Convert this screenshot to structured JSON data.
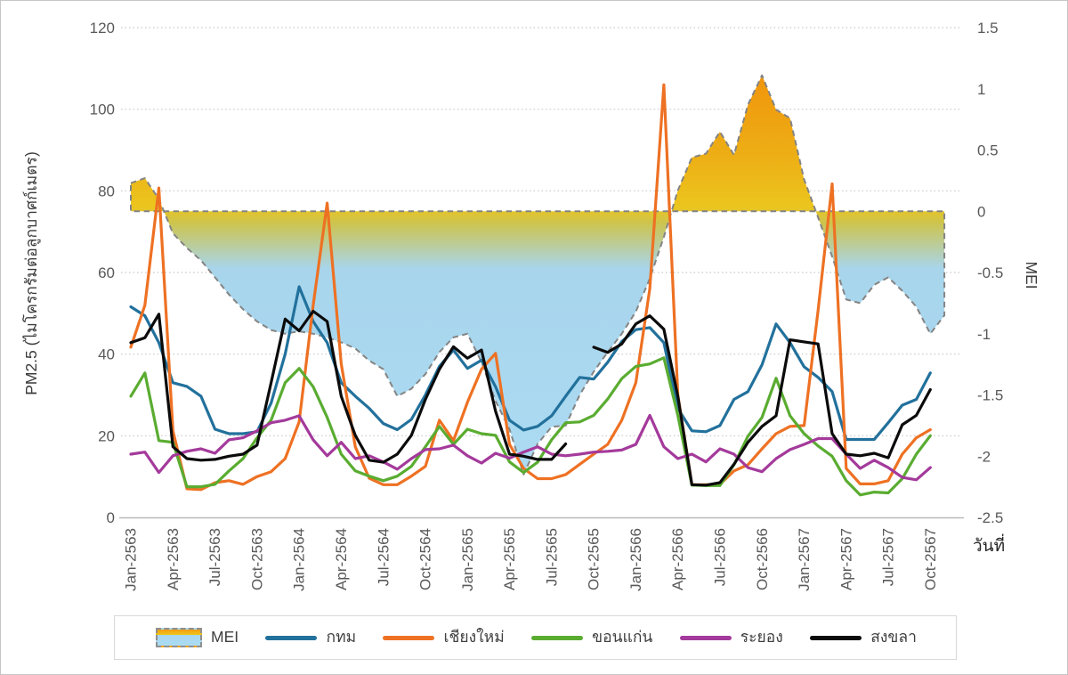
{
  "chart_data": {
    "type": "line",
    "title": "",
    "grid": "horizontal dotted",
    "legend_position": "bottom",
    "x_axis": {
      "label": "วันที่",
      "tick_labels": [
        "Jan-2563",
        "Apr-2563",
        "Jul-2563",
        "Oct-2563",
        "Jan-2564",
        "Apr-2564",
        "Jul-2564",
        "Oct-2564",
        "Jan-2565",
        "Apr-2565",
        "Jul-2565",
        "Oct-2565",
        "Jan-2566",
        "Apr-2566",
        "Jul-2566",
        "Oct-2566",
        "Jan-2567",
        "Apr-2567",
        "Jul-2567",
        "Oct-2567"
      ],
      "tick_every_n_months": 3
    },
    "y_left": {
      "label": "PM2.5 (ไมโครกรัมต่อลูกบาศก์เมตร)",
      "min": 0,
      "max": 120,
      "ticks": [
        0,
        20,
        40,
        60,
        80,
        100,
        120
      ]
    },
    "y_right": {
      "label": "MEI",
      "min": -2.5,
      "max": 1.5,
      "ticks": [
        -2.5,
        -2,
        -1.5,
        -1,
        -0.5,
        0,
        0.5,
        1,
        1.5
      ]
    },
    "mei_area": {
      "name": "MEI",
      "baseline": 0,
      "boundary_style": "dashed gray",
      "fill_above_zero": [
        "#f1910b",
        "#ecc51e"
      ],
      "fill_below_zero": [
        "#cdc44e",
        "#acdcf4"
      ],
      "values": [
        0.23,
        0.27,
        0.1,
        -0.18,
        -0.3,
        -0.4,
        -0.54,
        -0.68,
        -0.8,
        -0.9,
        -0.97,
        -1.0,
        -0.98,
        -1.0,
        -1.03,
        -1.07,
        -1.12,
        -1.22,
        -1.29,
        -1.51,
        -1.45,
        -1.33,
        -1.15,
        -1.03,
        -1.0,
        -1.23,
        -1.55,
        -1.78,
        -2.15,
        -1.9,
        -1.76,
        -1.75,
        -1.5,
        -1.31,
        -1.15,
        -1.0,
        -0.82,
        -0.55,
        -0.21,
        0.17,
        0.44,
        0.47,
        0.65,
        0.46,
        0.87,
        1.11,
        0.83,
        0.76,
        0.26,
        -0.05,
        -0.37,
        -0.72,
        -0.75,
        -0.6,
        -0.54,
        -0.65,
        -0.78,
        -1.0,
        -0.85
      ]
    },
    "series": [
      {
        "id": "bangkok",
        "name": "กทม",
        "color": "#22719c",
        "values": [
          51.6,
          49.4,
          42.8,
          33,
          32.1,
          29.7,
          21.6,
          20.5,
          20.5,
          21,
          28,
          40,
          56.5,
          48,
          42.8,
          33,
          29.7,
          26.7,
          23,
          21.5,
          24,
          30,
          37,
          41,
          36.5,
          38.5,
          32,
          23.8,
          21.4,
          22.3,
          24.9,
          29.7,
          34.3,
          33.9,
          38,
          43.1,
          46,
          46.5,
          42.8,
          26.7,
          21.2,
          21,
          22.5,
          28.9,
          30.8,
          37.4,
          47.4,
          42.8,
          36.9,
          34.3,
          30.8,
          19.1,
          19.1,
          19.1,
          23.2,
          27.5,
          28.9,
          35.4
        ]
      },
      {
        "id": "chiang-mai",
        "name": "เชียงใหม่",
        "color": "#ee7123",
        "values": [
          41.7,
          52,
          80.7,
          21.2,
          7,
          6.8,
          8.5,
          9,
          8.1,
          10,
          11.2,
          14.4,
          23.4,
          52,
          77,
          37.6,
          17.3,
          9.6,
          8,
          8,
          10.1,
          12.5,
          23.8,
          18.8,
          28.2,
          36.3,
          40.2,
          17.9,
          12,
          9.5,
          9.5,
          10.5,
          13,
          15.5,
          17.9,
          23.8,
          33,
          56,
          106,
          30,
          8,
          8,
          8.1,
          11.4,
          12.9,
          16.8,
          20.5,
          22.3,
          22.5,
          50.7,
          81.7,
          12,
          8.2,
          8.2,
          9,
          15.5,
          19.5,
          21.5
        ]
      },
      {
        "id": "khon-kaen",
        "name": "ขอนแก่น",
        "color": "#5aac31",
        "values": [
          29.7,
          35.4,
          18.8,
          18.4,
          7.5,
          7.5,
          8.1,
          11.4,
          14.4,
          19.5,
          23.8,
          33,
          36.5,
          32,
          24.5,
          15.5,
          11.4,
          10.1,
          9,
          10.1,
          12.5,
          17.3,
          22.3,
          17.9,
          21.6,
          20.5,
          20.1,
          13.6,
          11,
          13.5,
          19,
          23.2,
          23.4,
          25,
          29,
          34,
          37,
          37.6,
          39.1,
          25,
          7.9,
          7.8,
          7.8,
          12.9,
          19.9,
          24.5,
          34.1,
          24.9,
          20.5,
          17.5,
          15,
          9,
          5.5,
          6.2,
          6,
          9.5,
          15.5,
          20
        ]
      },
      {
        "id": "rayong",
        "name": "ระยอง",
        "color": "#a43a9b",
        "values": [
          15.5,
          16,
          11,
          15.1,
          16.2,
          16.8,
          15.7,
          19,
          19.5,
          21.2,
          23.2,
          23.8,
          24.9,
          19,
          15.1,
          18.4,
          14.4,
          15.1,
          13.6,
          11.8,
          14.4,
          16.6,
          16.8,
          17.7,
          15.1,
          13.3,
          15.7,
          14.5,
          16,
          17.3,
          15.5,
          15.1,
          15.5,
          16,
          16.2,
          16.5,
          17.9,
          25,
          17.3,
          14.4,
          15.5,
          13.6,
          16.8,
          15.5,
          12.2,
          11.2,
          14.4,
          16.6,
          17.9,
          19.3,
          19.3,
          15.5,
          12,
          14,
          12.2,
          9.8,
          9.2,
          12.2
        ]
      },
      {
        "id": "songkhla",
        "name": "สงขลา",
        "color": "#0b0b0b",
        "values": [
          42.8,
          44,
          49.8,
          17.3,
          14.4,
          14,
          14.2,
          15,
          15.5,
          17.7,
          33,
          48.6,
          45.7,
          50.5,
          48,
          29.7,
          20.1,
          14,
          13.5,
          15.5,
          20.1,
          28.9,
          36.3,
          41.8,
          39,
          41,
          26,
          15.5,
          15,
          14.2,
          14.2,
          18,
          null,
          41.7,
          40.4,
          42.5,
          47.4,
          49.4,
          46.1,
          29.7,
          8,
          7.9,
          8.5,
          13,
          18.4,
          22.3,
          24.9,
          43.5,
          43,
          42.5,
          20.5,
          15.5,
          15.1,
          15.7,
          14.6,
          22.7,
          25,
          31.3
        ]
      }
    ]
  },
  "legend": {
    "items": [
      {
        "id": "mei",
        "label": "MEI",
        "type": "area"
      },
      {
        "id": "bangkok",
        "label": "กทม",
        "type": "line",
        "color": "#22719c"
      },
      {
        "id": "chiang-mai",
        "label": "เชียงใหม่",
        "type": "line",
        "color": "#ee7123"
      },
      {
        "id": "khon-kaen",
        "label": "ขอนแก่น",
        "type": "line",
        "color": "#5aac31"
      },
      {
        "id": "rayong",
        "label": "ระยอง",
        "type": "line",
        "color": "#a43a9b"
      },
      {
        "id": "songkhla",
        "label": "สงขลา",
        "type": "line",
        "color": "#0b0b0b"
      }
    ]
  },
  "style_colors": {
    "gridline": "#c9c9c9",
    "axis_line": "#b9b9b9",
    "tick_text": "#595959",
    "area_boundary": "#848484"
  }
}
